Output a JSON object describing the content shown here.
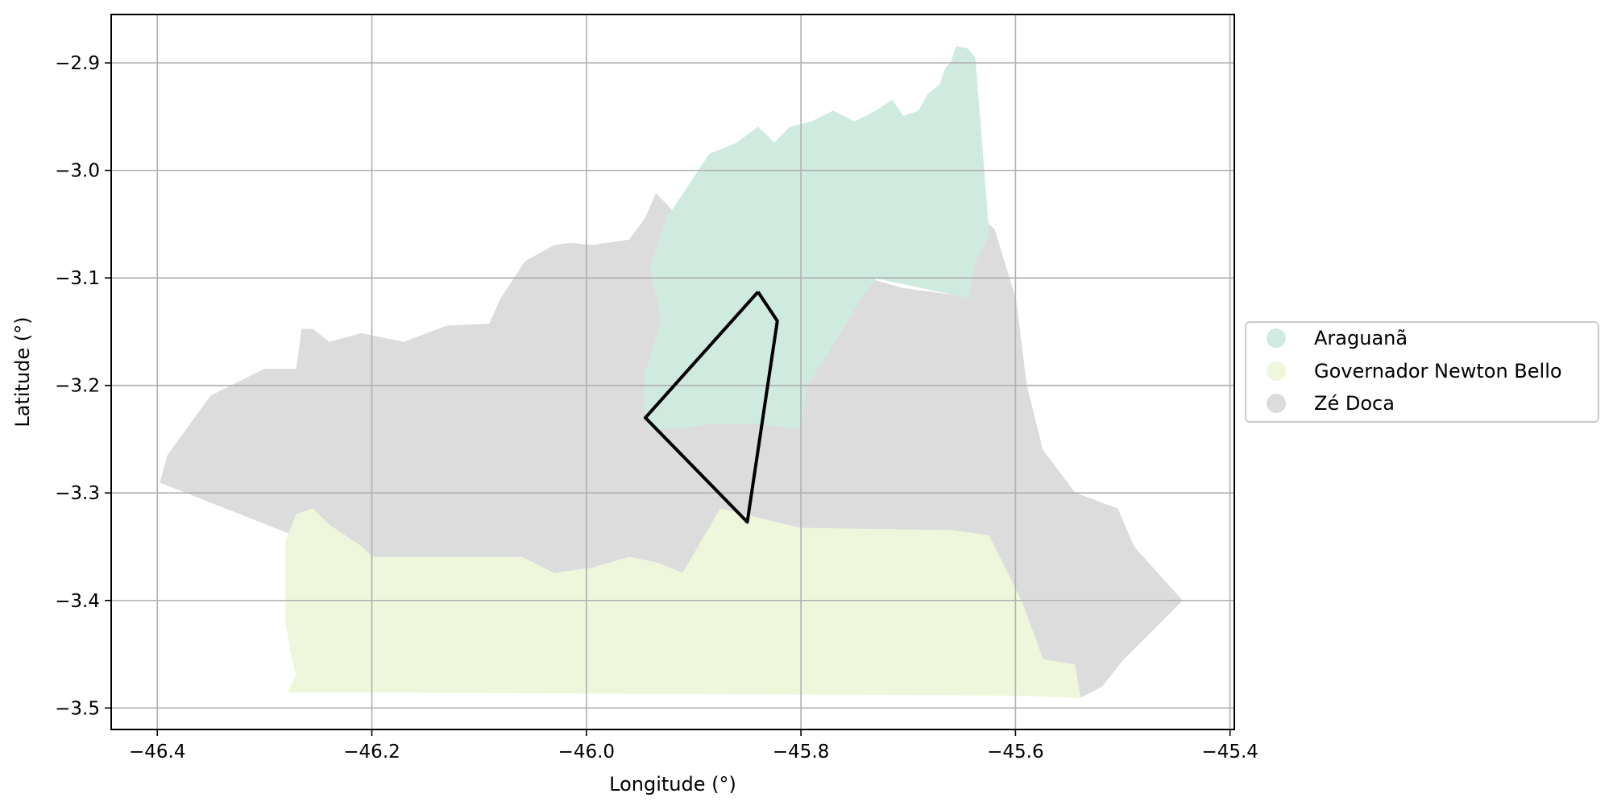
{
  "chart_data": {
    "type": "map",
    "xlabel": "Longitude (°)",
    "ylabel": "Latitude (°)",
    "xlim": [
      -46.443,
      -45.396
    ],
    "ylim": [
      -3.52,
      -2.855
    ],
    "grid": true,
    "legend_placement": "center-right, outside axes",
    "xticks": [
      -46.4,
      -46.2,
      -46.0,
      -45.8,
      -45.6,
      -45.4
    ],
    "xtick_labels": [
      "−46.4",
      "−46.2",
      "−46.0",
      "−45.8",
      "−45.6",
      "−45.4"
    ],
    "yticks": [
      -2.9,
      -3.0,
      -3.1,
      -3.2,
      -3.3,
      -3.4,
      -3.5
    ],
    "ytick_labels": [
      "−2.9",
      "−3.0",
      "−3.1",
      "−3.2",
      "−3.3",
      "−3.4",
      "−3.5"
    ],
    "regions": [
      {
        "name": "Zé Doca",
        "color": "#dcdcdc",
        "polygon": [
          [
            -46.397,
            -3.29
          ],
          [
            -46.39,
            -3.265
          ],
          [
            -46.35,
            -3.21
          ],
          [
            -46.3,
            -3.185
          ],
          [
            -46.27,
            -3.185
          ],
          [
            -46.265,
            -3.148
          ],
          [
            -46.255,
            -3.148
          ],
          [
            -46.24,
            -3.16
          ],
          [
            -46.21,
            -3.152
          ],
          [
            -46.17,
            -3.16
          ],
          [
            -46.13,
            -3.145
          ],
          [
            -46.09,
            -3.143
          ],
          [
            -46.08,
            -3.12
          ],
          [
            -46.07,
            -3.105
          ],
          [
            -46.057,
            -3.085
          ],
          [
            -46.03,
            -3.07
          ],
          [
            -46.015,
            -3.068
          ],
          [
            -45.995,
            -3.07
          ],
          [
            -45.96,
            -3.065
          ],
          [
            -45.945,
            -3.045
          ],
          [
            -45.935,
            -3.022
          ],
          [
            -45.91,
            -3.048
          ],
          [
            -45.89,
            -3.062
          ],
          [
            -45.8,
            -3.1
          ],
          [
            -45.74,
            -3.1
          ],
          [
            -45.705,
            -3.11
          ],
          [
            -45.645,
            -3.118
          ],
          [
            -45.642,
            -3.085
          ],
          [
            -45.638,
            -3.04
          ],
          [
            -45.62,
            -3.055
          ],
          [
            -45.6,
            -3.12
          ],
          [
            -45.59,
            -3.2
          ],
          [
            -45.575,
            -3.26
          ],
          [
            -45.545,
            -3.3
          ],
          [
            -45.505,
            -3.315
          ],
          [
            -45.49,
            -3.35
          ],
          [
            -45.445,
            -3.4
          ],
          [
            -45.48,
            -3.435
          ],
          [
            -45.5,
            -3.455
          ],
          [
            -45.52,
            -3.48
          ],
          [
            -45.54,
            -3.49
          ],
          [
            -45.545,
            -3.46
          ],
          [
            -45.575,
            -3.455
          ],
          [
            -45.58,
            -3.44
          ],
          [
            -45.595,
            -3.4
          ],
          [
            -45.61,
            -3.37
          ],
          [
            -45.625,
            -3.34
          ],
          [
            -45.66,
            -3.335
          ],
          [
            -45.8,
            -3.333
          ],
          [
            -45.855,
            -3.32
          ],
          [
            -45.875,
            -3.315
          ],
          [
            -45.91,
            -3.375
          ],
          [
            -45.935,
            -3.365
          ],
          [
            -45.96,
            -3.36
          ],
          [
            -45.995,
            -3.37
          ],
          [
            -46.03,
            -3.375
          ],
          [
            -46.06,
            -3.36
          ],
          [
            -46.1,
            -3.36
          ],
          [
            -46.2,
            -3.36
          ],
          [
            -46.25,
            -3.33
          ],
          [
            -46.27,
            -3.34
          ]
        ]
      },
      {
        "name": "Araguanã",
        "color": "#cfeadf",
        "polygon": [
          [
            -45.942,
            -3.24
          ],
          [
            -45.915,
            -3.24
          ],
          [
            -45.88,
            -3.235
          ],
          [
            -45.845,
            -3.235
          ],
          [
            -45.8,
            -3.24
          ],
          [
            -45.795,
            -3.2
          ],
          [
            -45.775,
            -3.17
          ],
          [
            -45.745,
            -3.12
          ],
          [
            -45.73,
            -3.1
          ],
          [
            -45.645,
            -3.118
          ],
          [
            -45.638,
            -3.085
          ],
          [
            -45.625,
            -3.06
          ],
          [
            -45.638,
            -2.895
          ],
          [
            -45.645,
            -2.887
          ],
          [
            -45.655,
            -2.885
          ],
          [
            -45.66,
            -2.9
          ],
          [
            -45.665,
            -2.905
          ],
          [
            -45.67,
            -2.92
          ],
          [
            -45.682,
            -2.93
          ],
          [
            -45.69,
            -2.945
          ],
          [
            -45.705,
            -2.95
          ],
          [
            -45.715,
            -2.935
          ],
          [
            -45.73,
            -2.945
          ],
          [
            -45.75,
            -2.955
          ],
          [
            -45.77,
            -2.945
          ],
          [
            -45.79,
            -2.955
          ],
          [
            -45.81,
            -2.96
          ],
          [
            -45.825,
            -2.975
          ],
          [
            -45.84,
            -2.96
          ],
          [
            -45.86,
            -2.975
          ],
          [
            -45.885,
            -2.985
          ],
          [
            -45.905,
            -3.015
          ],
          [
            -45.925,
            -3.045
          ],
          [
            -45.935,
            -3.075
          ],
          [
            -45.94,
            -3.09
          ],
          [
            -45.93,
            -3.14
          ],
          [
            -45.945,
            -3.19
          ],
          [
            -45.946,
            -3.22
          ]
        ]
      },
      {
        "name": "Governador Newton Bello",
        "color": "#eef7db",
        "polygon": [
          [
            -46.278,
            -3.485
          ],
          [
            -46.27,
            -3.47
          ],
          [
            -46.275,
            -3.45
          ],
          [
            -46.28,
            -3.42
          ],
          [
            -46.28,
            -3.345
          ],
          [
            -46.27,
            -3.32
          ],
          [
            -46.255,
            -3.315
          ],
          [
            -46.24,
            -3.33
          ],
          [
            -46.21,
            -3.35
          ],
          [
            -46.2,
            -3.36
          ],
          [
            -46.1,
            -3.36
          ],
          [
            -46.06,
            -3.36
          ],
          [
            -46.03,
            -3.375
          ],
          [
            -45.995,
            -3.37
          ],
          [
            -45.96,
            -3.36
          ],
          [
            -45.935,
            -3.365
          ],
          [
            -45.91,
            -3.375
          ],
          [
            -45.875,
            -3.315
          ],
          [
            -45.855,
            -3.32
          ],
          [
            -45.8,
            -3.333
          ],
          [
            -45.66,
            -3.335
          ],
          [
            -45.625,
            -3.34
          ],
          [
            -45.61,
            -3.37
          ],
          [
            -45.595,
            -3.4
          ],
          [
            -45.58,
            -3.44
          ],
          [
            -45.575,
            -3.455
          ],
          [
            -45.545,
            -3.46
          ],
          [
            -45.54,
            -3.49
          ],
          [
            -45.6,
            -3.488
          ],
          [
            -45.8,
            -3.487
          ],
          [
            -46.0,
            -3.486
          ],
          [
            -46.2,
            -3.485
          ]
        ]
      }
    ],
    "outline": {
      "color": "#000000",
      "polygon": [
        [
          -45.84,
          -3.113
        ],
        [
          -45.822,
          -3.14
        ],
        [
          -45.85,
          -3.327
        ],
        [
          -45.945,
          -3.23
        ],
        [
          -45.84,
          -3.113
        ]
      ]
    },
    "legend": [
      {
        "label": "Araguanã",
        "color": "#cfeadf"
      },
      {
        "label": "Governador Newton Bello",
        "color": "#eef7db"
      },
      {
        "label": "Zé Doca",
        "color": "#dcdcdc"
      }
    ]
  }
}
